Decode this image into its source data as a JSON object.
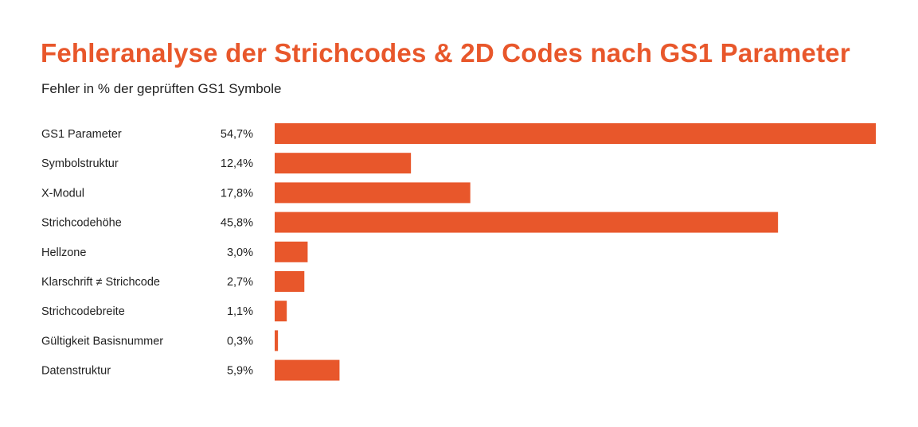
{
  "chart_data": {
    "type": "bar",
    "orientation": "horizontal",
    "title": "Fehleranalyse der Strichcodes & 2D Codes nach GS1 Parameter",
    "subtitle": "Fehler in % der geprüften GS1 Symbole",
    "categories": [
      "GS1 Parameter",
      "Symbolstruktur",
      "X-Modul",
      "Strichcodehöhe",
      "Hellzone",
      "Klarschrift ≠ Strichcode",
      "Strichcodebreite",
      "Gültigkeit Basisnummer",
      "Datenstruktur"
    ],
    "values": [
      54.7,
      12.4,
      17.8,
      45.8,
      3.0,
      2.7,
      1.1,
      0.3,
      5.9
    ],
    "value_labels": [
      "54,7%",
      "12,4%",
      "17,8%",
      "45,8%",
      "3,0%",
      "2,7%",
      "1,1%",
      "0,3%",
      "5,9%"
    ],
    "xlim": [
      0,
      54.7
    ],
    "grid": false,
    "bar_color": "#e8572b"
  }
}
